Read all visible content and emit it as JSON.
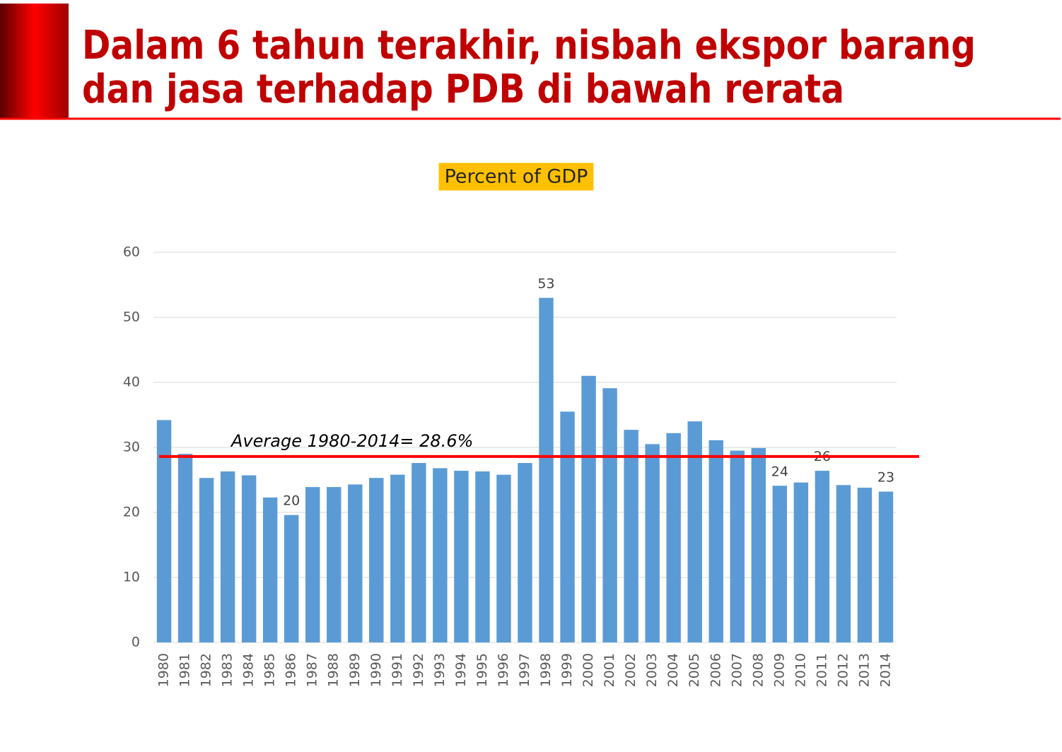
{
  "header": {
    "title": [
      "Dalam 6 tahun terakhir, nisbah ekspor barang",
      "dan jasa terhadap PDB di bawah rerata"
    ]
  },
  "chart_data": {
    "type": "bar",
    "title": "Percent of GDP",
    "categories": [
      "1980",
      "1981",
      "1982",
      "1983",
      "1984",
      "1985",
      "1986",
      "1987",
      "1988",
      "1989",
      "1990",
      "1991",
      "1992",
      "1993",
      "1994",
      "1995",
      "1996",
      "1997",
      "1998",
      "1999",
      "2000",
      "2001",
      "2002",
      "2003",
      "2004",
      "2005",
      "2006",
      "2007",
      "2008",
      "2009",
      "2010",
      "2011",
      "2012",
      "2013",
      "2014"
    ],
    "values": [
      34.2,
      29.0,
      25.3,
      26.3,
      25.7,
      22.3,
      19.6,
      23.9,
      23.9,
      24.3,
      25.3,
      25.8,
      27.6,
      26.8,
      26.4,
      26.3,
      25.8,
      27.6,
      53.0,
      35.5,
      41.0,
      39.1,
      32.7,
      30.5,
      32.2,
      34.0,
      31.1,
      29.5,
      29.9,
      24.1,
      24.6,
      26.4,
      24.2,
      23.8,
      23.2
    ],
    "value_labels": [
      null,
      null,
      null,
      null,
      null,
      null,
      "20",
      null,
      null,
      null,
      null,
      null,
      null,
      null,
      null,
      null,
      null,
      null,
      "53",
      null,
      null,
      null,
      null,
      null,
      null,
      null,
      null,
      null,
      null,
      "24",
      null,
      "26",
      null,
      null,
      "23"
    ],
    "color": "#5b9bd5",
    "ylim": [
      0,
      60
    ],
    "yticks": [
      0,
      10,
      20,
      30,
      40,
      50,
      60
    ],
    "grid": true,
    "reference_line": {
      "value": 28.6,
      "label": "Average 1980-2014= 28.6%",
      "color": "#ff0000"
    }
  }
}
